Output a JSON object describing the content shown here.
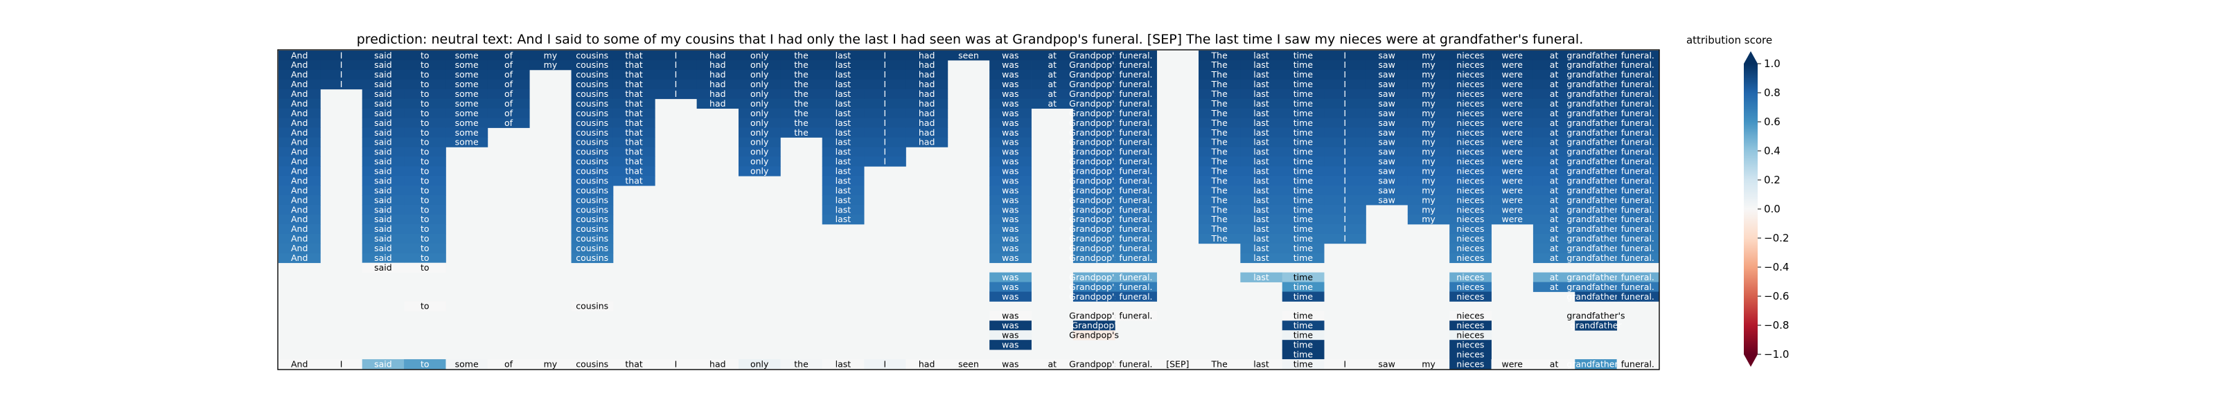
{
  "chart_data": {
    "type": "heatmap",
    "title": "prediction:  neutral     text:  And I said to some of my cousins that I had only the last I had seen was at Grandpop's funeral. [SEP] The last time I saw my nieces were at grandfather's funeral.",
    "tokens": [
      "And",
      "I",
      "said",
      "to",
      "some",
      "of",
      "my",
      "cousins",
      "that",
      "I",
      "had",
      "only",
      "the",
      "last",
      "I",
      "had",
      "seen",
      "was",
      "at",
      "Grandpop's",
      "funeral.",
      "[SEP]",
      "The",
      "last",
      "time",
      "I",
      "saw",
      "my",
      "nieces",
      "were",
      "at",
      "grandfather's",
      "funeral."
    ],
    "columns": [
      {
        "token": "And",
        "depth": 22,
        "tail": []
      },
      {
        "token": "I",
        "depth": 4,
        "tail": []
      },
      {
        "token": "said",
        "depth": 22,
        "tail": [
          {
            "r": 22,
            "v": 0.0,
            "t": "said"
          }
        ]
      },
      {
        "token": "to",
        "depth": 22,
        "tail": [
          {
            "r": 22,
            "v": 0.0,
            "t": "to"
          },
          {
            "r": 26,
            "v": 0.0,
            "t": "to"
          }
        ]
      },
      {
        "token": "some",
        "depth": 10,
        "tail": []
      },
      {
        "token": "of",
        "depth": 8,
        "tail": []
      },
      {
        "token": "my",
        "depth": 2,
        "tail": []
      },
      {
        "token": "cousins",
        "depth": 22,
        "tail": [
          {
            "r": 26,
            "v": 0.0,
            "t": "cousins"
          }
        ]
      },
      {
        "token": "that",
        "depth": 14,
        "tail": []
      },
      {
        "token": "I",
        "depth": 5,
        "tail": []
      },
      {
        "token": "had",
        "depth": 6,
        "tail": []
      },
      {
        "token": "only",
        "depth": 13,
        "tail": []
      },
      {
        "token": "the",
        "depth": 9,
        "tail": []
      },
      {
        "token": "last",
        "depth": 18,
        "tail": []
      },
      {
        "token": "I",
        "depth": 12,
        "tail": []
      },
      {
        "token": "had",
        "depth": 10,
        "tail": []
      },
      {
        "token": "seen",
        "depth": 1,
        "tail": []
      },
      {
        "token": "was",
        "depth": 22,
        "tail": [
          {
            "r": 23,
            "v": 0.55,
            "t": "was"
          },
          {
            "r": 24,
            "v": 0.72,
            "t": "was"
          },
          {
            "r": 25,
            "v": 0.85,
            "t": "was"
          },
          {
            "r": 27,
            "v": 0.0,
            "t": "was"
          },
          {
            "r": 28,
            "v": 0.95,
            "t": "was"
          },
          {
            "r": 29,
            "v": 0.05,
            "t": "was"
          },
          {
            "r": 30,
            "v": 0.95,
            "t": "was"
          }
        ]
      },
      {
        "token": "at",
        "depth": 6,
        "tail": []
      },
      {
        "token": "Grandpop's",
        "depth": 22,
        "tail": [
          {
            "r": 23,
            "v": 0.5,
            "t": "Grandpop's"
          },
          {
            "r": 24,
            "v": 0.7,
            "t": "Grandpop's"
          },
          {
            "r": 25,
            "v": 0.85,
            "t": "Grandpop's"
          },
          {
            "r": 27,
            "v": 0.0,
            "t": "Grandpop's"
          },
          {
            "r": 28,
            "v": 0.95,
            "t": "Grandpop'"
          },
          {
            "r": 29,
            "v": -0.08,
            "t": "Grandpop's"
          }
        ]
      },
      {
        "token": "funeral.",
        "depth": 22,
        "tail": [
          {
            "r": 23,
            "v": 0.5,
            "t": "funeral."
          },
          {
            "r": 24,
            "v": 0.7,
            "t": "funeral."
          },
          {
            "r": 25,
            "v": 0.85,
            "t": "funeral."
          },
          {
            "r": 27,
            "v": 0.0,
            "t": "funeral."
          }
        ]
      },
      {
        "token": "[SEP]",
        "depth": 0,
        "tail": []
      },
      {
        "token": "The",
        "depth": 20,
        "tail": []
      },
      {
        "token": "last",
        "depth": 22,
        "tail": [
          {
            "r": 23,
            "v": 0.45,
            "t": "last"
          }
        ]
      },
      {
        "token": "time",
        "depth": 22,
        "tail": [
          {
            "r": 23,
            "v": 0.4,
            "t": "time"
          },
          {
            "r": 24,
            "v": 0.6,
            "t": "time"
          },
          {
            "r": 25,
            "v": 0.9,
            "t": "time"
          },
          {
            "r": 27,
            "v": 0.0,
            "t": "time"
          },
          {
            "r": 28,
            "v": 0.92,
            "t": "time"
          },
          {
            "r": 29,
            "v": 0.05,
            "t": "time"
          },
          {
            "r": 30,
            "v": 0.95,
            "t": "time"
          },
          {
            "r": 31,
            "v": 0.95,
            "t": "time"
          }
        ]
      },
      {
        "token": "I",
        "depth": 20,
        "tail": []
      },
      {
        "token": "saw",
        "depth": 16,
        "tail": []
      },
      {
        "token": "my",
        "depth": 18,
        "tail": []
      },
      {
        "token": "nieces",
        "depth": 22,
        "tail": [
          {
            "r": 23,
            "v": 0.5,
            "t": "nieces"
          },
          {
            "r": 24,
            "v": 0.72,
            "t": "nieces"
          },
          {
            "r": 25,
            "v": 0.9,
            "t": "nieces"
          },
          {
            "r": 27,
            "v": 0.0,
            "t": "nieces"
          },
          {
            "r": 28,
            "v": 0.95,
            "t": "nieces"
          },
          {
            "r": 29,
            "v": 0.05,
            "t": "nieces"
          },
          {
            "r": 30,
            "v": 0.95,
            "t": "nieces"
          },
          {
            "r": 31,
            "v": 0.95,
            "t": "nieces"
          }
        ]
      },
      {
        "token": "were",
        "depth": 18,
        "tail": []
      },
      {
        "token": "at",
        "depth": 22,
        "tail": [
          {
            "r": 23,
            "v": 0.5,
            "t": "at"
          },
          {
            "r": 24,
            "v": 0.72,
            "t": "at"
          }
        ]
      },
      {
        "token": "grandfather's",
        "depth": 22,
        "tail": [
          {
            "r": 23,
            "v": 0.5,
            "t": "grandfather's"
          },
          {
            "r": 24,
            "v": 0.72,
            "t": "grandfather's"
          },
          {
            "r": 25,
            "v": 0.9,
            "t": "grandfather's"
          },
          {
            "r": 27,
            "v": 0.0,
            "t": "grandfather's"
          },
          {
            "r": 28,
            "v": 0.95,
            "t": "grandfather"
          }
        ]
      },
      {
        "token": "funeral.",
        "depth": 22,
        "tail": [
          {
            "r": 23,
            "v": 0.5,
            "t": "funeral."
          },
          {
            "r": 24,
            "v": 0.72,
            "t": "funeral."
          },
          {
            "r": 25,
            "v": 0.9,
            "t": "funeral."
          }
        ]
      }
    ],
    "bottom_row": [
      {
        "t": "And",
        "v": 0.0
      },
      {
        "t": "I",
        "v": 0.0
      },
      {
        "t": "said",
        "v": 0.45
      },
      {
        "t": "to",
        "v": 0.55
      },
      {
        "t": "some",
        "v": 0.02
      },
      {
        "t": "of",
        "v": 0.0
      },
      {
        "t": "my",
        "v": 0.0
      },
      {
        "t": "cousins",
        "v": 0.0
      },
      {
        "t": "that",
        "v": 0.0
      },
      {
        "t": "I",
        "v": 0.0
      },
      {
        "t": "had",
        "v": 0.0
      },
      {
        "t": "only",
        "v": 0.06
      },
      {
        "t": "the",
        "v": 0.02
      },
      {
        "t": "last",
        "v": 0.0
      },
      {
        "t": "I",
        "v": 0.04
      },
      {
        "t": "had",
        "v": 0.0
      },
      {
        "t": "seen",
        "v": 0.0
      },
      {
        "t": "was",
        "v": 0.0
      },
      {
        "t": "at",
        "v": 0.0
      },
      {
        "t": "Grandpop's",
        "v": 0.0
      },
      {
        "t": "funeral.",
        "v": 0.0
      },
      {
        "t": "[SEP]",
        "v": 0.0
      },
      {
        "t": "The",
        "v": 0.0
      },
      {
        "t": "last",
        "v": 0.0
      },
      {
        "t": "time",
        "v": 0.03
      },
      {
        "t": "I",
        "v": 0.0
      },
      {
        "t": "saw",
        "v": 0.0
      },
      {
        "t": "my",
        "v": 0.0
      },
      {
        "t": "nieces",
        "v": 0.95
      },
      {
        "t": "were",
        "v": 0.0
      },
      {
        "t": "at",
        "v": 0.0
      },
      {
        "t": "grandfather's",
        "v": 0.6
      },
      {
        "t": "funeral.",
        "v": 0.0
      }
    ],
    "colorbar": {
      "label": "attribution score",
      "range": [
        -1.0,
        1.0
      ],
      "colormap": "RdBu",
      "ticks": [
        {
          "v": 1.0,
          "label": "1.0"
        },
        {
          "v": 0.8,
          "label": "0.8"
        },
        {
          "v": 0.6,
          "label": "0.6"
        },
        {
          "v": 0.4,
          "label": "0.4"
        },
        {
          "v": 0.2,
          "label": "0.2"
        },
        {
          "v": 0.0,
          "label": "0.0"
        },
        {
          "v": -0.2,
          "label": "−0.2"
        },
        {
          "v": -0.4,
          "label": "−0.4"
        },
        {
          "v": -0.6,
          "label": "−0.6"
        },
        {
          "v": -0.8,
          "label": "−0.8"
        },
        {
          "v": -1.0,
          "label": "−1.0"
        }
      ]
    }
  }
}
